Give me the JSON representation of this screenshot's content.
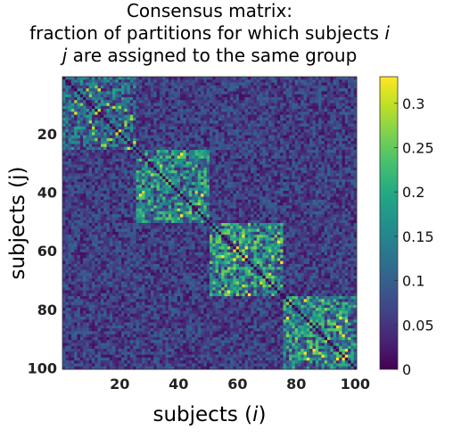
{
  "chart_data": {
    "type": "heatmap",
    "title": {
      "line1": "Consensus matrix:",
      "line2_prefix": "fraction of partitions for which subjects ",
      "line2_var": "i",
      "line3_var": "j",
      "line3_suffix": " are assigned to the same group"
    },
    "xlabel": {
      "prefix": "subjects (",
      "var": "i",
      "suffix": ")"
    },
    "ylabel": "subjects (j)",
    "x_ticks": [
      "20",
      "40",
      "60",
      "80",
      "100"
    ],
    "y_ticks": [
      "20",
      "40",
      "60",
      "80",
      "100"
    ],
    "n_subjects": 100,
    "blocks": [
      {
        "start": 1,
        "end": 25,
        "mean_within": 0.11
      },
      {
        "start": 26,
        "end": 50,
        "mean_within": 0.14
      },
      {
        "start": 51,
        "end": 75,
        "mean_within": 0.15
      },
      {
        "start": 76,
        "end": 100,
        "mean_within": 0.14
      }
    ],
    "mean_between": 0.06,
    "diagonal_value": 0,
    "colorbar": {
      "colormap": "viridis",
      "range": [
        0,
        0.33
      ],
      "ticks": [
        "0",
        "0.05",
        "0.1",
        "0.15",
        "0.2",
        "0.25",
        "0.3"
      ]
    }
  }
}
